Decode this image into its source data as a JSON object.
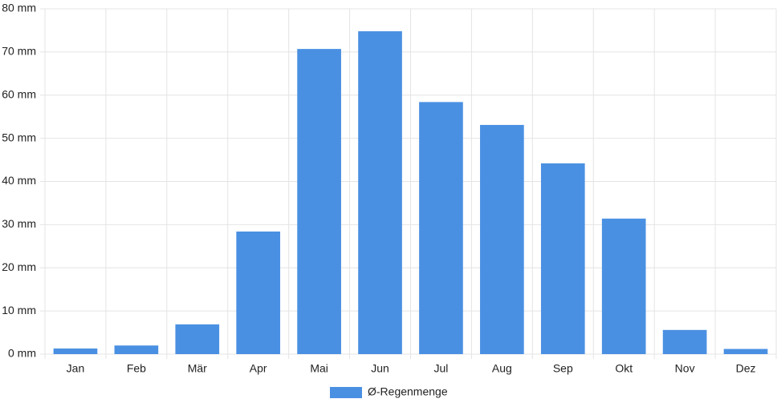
{
  "chart_data": {
    "type": "bar",
    "categories": [
      "Jan",
      "Feb",
      "Mär",
      "Apr",
      "Mai",
      "Jun",
      "Jul",
      "Aug",
      "Sep",
      "Okt",
      "Nov",
      "Dez"
    ],
    "series": [
      {
        "name": "Ø-Regenmenge",
        "color": "#4a90e2",
        "values": [
          1.3,
          2.0,
          6.9,
          28.4,
          70.7,
          74.8,
          58.4,
          53.1,
          44.2,
          31.4,
          5.6,
          1.2
        ]
      }
    ],
    "ylim": [
      0,
      80
    ],
    "yticks": [
      {
        "value": 0,
        "label": "0 mm"
      },
      {
        "value": 10,
        "label": "10 mm"
      },
      {
        "value": 20,
        "label": "20 mm"
      },
      {
        "value": 30,
        "label": "30 mm"
      },
      {
        "value": 40,
        "label": "40 mm"
      },
      {
        "value": 50,
        "label": "50 mm"
      },
      {
        "value": 60,
        "label": "60 mm"
      },
      {
        "value": 70,
        "label": "70 mm"
      },
      {
        "value": 80,
        "label": "80 mm"
      }
    ],
    "grid": true,
    "legend": "bottom"
  }
}
